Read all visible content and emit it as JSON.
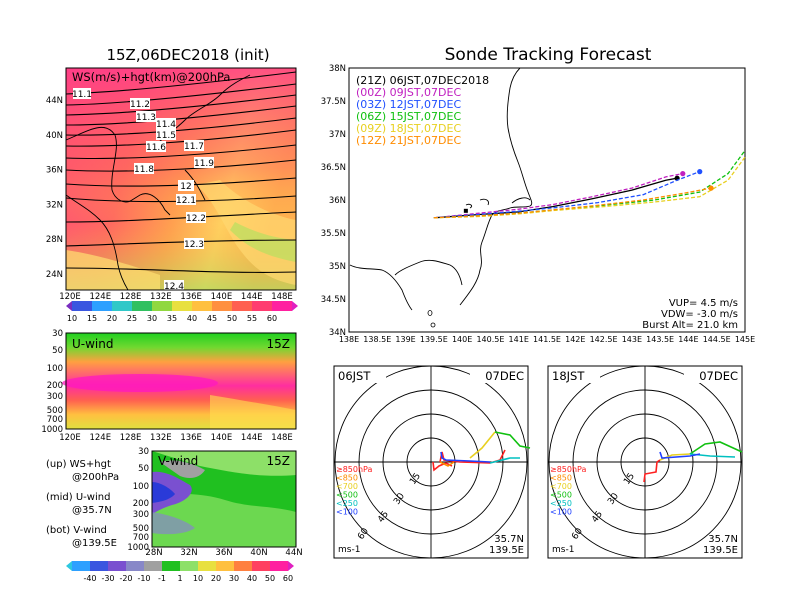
{
  "left_title": "15Z,06DEC2018 (init)",
  "right_title": "Sonde Tracking Forecast",
  "ws_panel": {
    "label": "WS(m/s)+hgt(km)@200hPa",
    "contours": [
      "11.1",
      "11.2",
      "11.3",
      "11.4",
      "11.5",
      "11.6",
      "11.7",
      "11.8",
      "11.9",
      "12",
      "12.1",
      "12.2",
      "12.3",
      "12.4"
    ],
    "lat_ticks": [
      "44N",
      "40N",
      "36N",
      "32N",
      "28N",
      "24N"
    ],
    "lon_ticks": [
      "120E",
      "124E",
      "128E",
      "132E",
      "136E",
      "140E",
      "144E",
      "148E"
    ]
  },
  "ws_colorbar": {
    "labels": [
      "10",
      "15",
      "20",
      "25",
      "30",
      "35",
      "40",
      "45",
      "50",
      "55",
      "60"
    ]
  },
  "u_panel": {
    "label": "U-wind",
    "time": "15Z",
    "p_ticks": [
      "30",
      "50",
      "100",
      "200",
      "300",
      "500",
      "700",
      "1000"
    ],
    "lon_ticks": [
      "120E",
      "124E",
      "128E",
      "132E",
      "136E",
      "140E",
      "144E",
      "148E"
    ]
  },
  "v_panel": {
    "label": "V-wind",
    "time": "15Z",
    "p_ticks": [
      "30",
      "50",
      "100",
      "200",
      "300",
      "500",
      "700",
      "1000"
    ],
    "lat_ticks": [
      "28N",
      "32N",
      "36N",
      "40N",
      "44N"
    ]
  },
  "legend_notes": [
    {
      "a": "(up) WS+hgt",
      "b": "@200hPa"
    },
    {
      "a": "(mid) U-wind",
      "b": "@35.7N"
    },
    {
      "a": "(bot) V-wind",
      "b": "@139.5E"
    }
  ],
  "uv_colorbar": {
    "labels": [
      "-40",
      "-30",
      "-20",
      "-10",
      "-1",
      "1",
      "10",
      "20",
      "30",
      "40",
      "50",
      "60"
    ]
  },
  "track_panel": {
    "lat_ticks": [
      "38N",
      "37.5N",
      "37N",
      "36.5N",
      "36N",
      "35.5N",
      "35N",
      "34.5N",
      "34N"
    ],
    "lon_ticks": [
      "138E",
      "138.5E",
      "139E",
      "139.5E",
      "140E",
      "140.5E",
      "141E",
      "141.5E",
      "142E",
      "142.5E",
      "143E",
      "143.5E",
      "144E",
      "144.5E",
      "145E"
    ],
    "launch_info": [
      {
        "text": "VUP= 4.5 m/s"
      },
      {
        "text": "VDW= -3.0 m/s"
      },
      {
        "text": "Burst Alt= 21.0 km"
      }
    ]
  },
  "hodo_left": {
    "time": "06JST",
    "date": "07DEC",
    "lat": "35.7N",
    "lon": "139.5E",
    "unit": "ms-1",
    "rings": [
      "15",
      "30",
      "45",
      "60"
    ]
  },
  "hodo_right": {
    "time": "18JST",
    "date": "07DEC",
    "lat": "35.7N",
    "lon": "139.5E",
    "unit": "ms-1",
    "rings": [
      "15",
      "30",
      "45",
      "60"
    ]
  },
  "hodo_legend": [
    {
      "text": "≥850hPa",
      "color": "#ff2020"
    },
    {
      "text": "<850",
      "color": "#ff8c00"
    },
    {
      "text": "<700",
      "color": "#e8d020"
    },
    {
      "text": "<500",
      "color": "#10c010"
    },
    {
      "text": "<250",
      "color": "#00c0c0"
    },
    {
      "text": "<100",
      "color": "#2040ff"
    }
  ],
  "chart_data": {
    "type": "line",
    "title": "Sonde Tracking Forecast",
    "xlim": [
      138,
      145
    ],
    "ylim": [
      34,
      38
    ],
    "series": [
      {
        "name": "(21Z) 06JST,07DEC2018",
        "color": "#000000",
        "points": [
          [
            139.5,
            35.73
          ],
          [
            140.3,
            35.78
          ],
          [
            141.0,
            35.82
          ],
          [
            141.6,
            35.9
          ],
          [
            142.3,
            36.02
          ],
          [
            143.0,
            36.15
          ],
          [
            143.6,
            36.3
          ],
          [
            143.8,
            36.33
          ]
        ]
      },
      {
        "name": "(00Z) 09JST,07DEC",
        "color": "#c020c0",
        "points": [
          [
            139.5,
            35.73
          ],
          [
            140.3,
            35.8
          ],
          [
            141.0,
            35.86
          ],
          [
            141.6,
            35.93
          ],
          [
            142.3,
            36.05
          ],
          [
            143.0,
            36.18
          ],
          [
            143.6,
            36.35
          ],
          [
            143.9,
            36.4
          ]
        ]
      },
      {
        "name": "(03Z) 12JST,07DEC",
        "color": "#2050ff",
        "points": [
          [
            139.5,
            35.73
          ],
          [
            140.3,
            35.78
          ],
          [
            141.0,
            35.83
          ],
          [
            141.6,
            35.88
          ],
          [
            142.4,
            35.96
          ],
          [
            143.2,
            36.08
          ],
          [
            143.8,
            36.3
          ],
          [
            144.2,
            36.43
          ]
        ]
      },
      {
        "name": "(06Z) 15JST,07DEC",
        "color": "#10c010",
        "points": [
          [
            139.5,
            35.73
          ],
          [
            140.3,
            35.76
          ],
          [
            141.0,
            35.8
          ],
          [
            141.6,
            35.85
          ],
          [
            142.5,
            35.92
          ],
          [
            143.4,
            36.0
          ],
          [
            144.2,
            36.12
          ],
          [
            144.7,
            36.4
          ],
          [
            145.0,
            36.75
          ]
        ]
      },
      {
        "name": "(09Z) 18JST,07DEC",
        "color": "#e8d020",
        "points": [
          [
            139.5,
            35.73
          ],
          [
            140.3,
            35.75
          ],
          [
            141.0,
            35.79
          ],
          [
            141.6,
            35.84
          ],
          [
            142.5,
            35.9
          ],
          [
            143.4,
            35.97
          ],
          [
            144.2,
            36.05
          ],
          [
            144.7,
            36.3
          ],
          [
            145.0,
            36.65
          ]
        ]
      },
      {
        "name": "(12Z) 21JST,07DEC",
        "color": "#ff8c00",
        "points": [
          [
            139.5,
            35.73
          ],
          [
            140.3,
            35.76
          ],
          [
            141.0,
            35.8
          ],
          [
            141.6,
            35.85
          ],
          [
            142.4,
            35.92
          ],
          [
            143.2,
            36.0
          ],
          [
            143.9,
            36.1
          ],
          [
            144.4,
            36.18
          ]
        ]
      }
    ]
  }
}
